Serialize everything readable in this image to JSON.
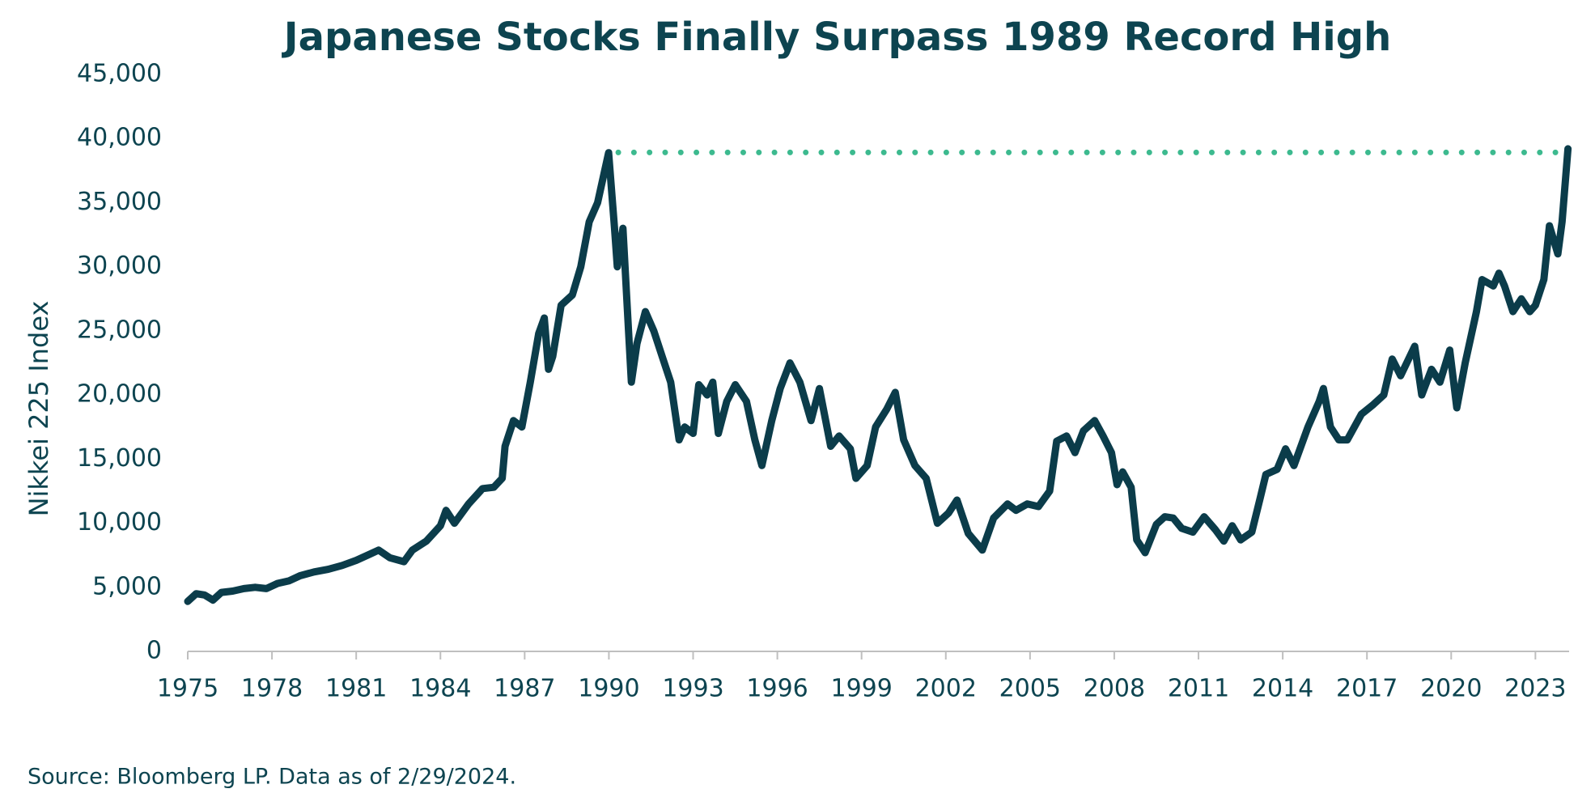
{
  "chart_data": {
    "type": "line",
    "title": "Japanese Stocks Finally Surpass 1989 Record High",
    "y_label": "Nikkei 225 Index",
    "source": "Source: Bloomberg LP. Data as of 2/29/2024.",
    "xlim": [
      1975,
      2024.2
    ],
    "xticks": [
      1975,
      1978,
      1981,
      1984,
      1987,
      1990,
      1993,
      1996,
      1999,
      2002,
      2005,
      2008,
      2011,
      2014,
      2017,
      2020,
      2023
    ],
    "ylim": [
      0,
      45000
    ],
    "yticks": [
      0,
      {
        "value": 5000,
        "label": "5,000"
      },
      {
        "value": 10000,
        "label": "10,000"
      },
      {
        "value": 15000,
        "label": "15,000"
      },
      {
        "value": 20000,
        "label": "20,000"
      },
      {
        "value": 25000,
        "label": "25,000"
      },
      {
        "value": 30000,
        "label": "30,000"
      },
      {
        "value": 35000,
        "label": "35,000"
      },
      {
        "value": 40000,
        "label": "40,000"
      },
      {
        "value": 45000,
        "label": "45,000"
      }
    ],
    "grid": false,
    "x": [
      1975.0,
      1975.3,
      1975.6,
      1975.9,
      1976.2,
      1976.6,
      1977.0,
      1977.4,
      1977.8,
      1978.2,
      1978.6,
      1979.0,
      1979.5,
      1980.0,
      1980.5,
      1981.0,
      1981.5,
      1981.8,
      1982.2,
      1982.7,
      1983.0,
      1983.5,
      1984.0,
      1984.2,
      1984.5,
      1985.0,
      1985.5,
      1985.9,
      1986.2,
      1986.3,
      1986.6,
      1986.9,
      1987.2,
      1987.5,
      1987.7,
      1987.85,
      1988.0,
      1988.3,
      1988.7,
      1989.0,
      1989.3,
      1989.6,
      1989.99,
      1990.2,
      1990.3,
      1990.5,
      1990.7,
      1990.8,
      1991.0,
      1991.3,
      1991.6,
      1991.9,
      1992.2,
      1992.5,
      1992.7,
      1993.0,
      1993.2,
      1993.5,
      1993.7,
      1993.9,
      1994.2,
      1994.5,
      1994.9,
      1995.2,
      1995.45,
      1995.8,
      1996.1,
      1996.45,
      1996.8,
      1997.2,
      1997.5,
      1997.9,
      1998.2,
      1998.6,
      1998.8,
      1999.2,
      1999.5,
      1999.9,
      2000.2,
      2000.5,
      2000.9,
      2001.3,
      2001.7,
      2002.1,
      2002.4,
      2002.8,
      2003.3,
      2003.7,
      2004.2,
      2004.5,
      2004.9,
      2005.3,
      2005.7,
      2005.95,
      2006.3,
      2006.6,
      2006.9,
      2007.3,
      2007.6,
      2007.9,
      2008.1,
      2008.3,
      2008.6,
      2008.8,
      2009.1,
      2009.5,
      2009.8,
      2010.1,
      2010.4,
      2010.8,
      2011.2,
      2011.6,
      2011.9,
      2012.2,
      2012.5,
      2012.9,
      2013.2,
      2013.4,
      2013.8,
      2014.1,
      2014.4,
      2014.9,
      2015.3,
      2015.45,
      2015.7,
      2016.0,
      2016.3,
      2016.8,
      2017.2,
      2017.6,
      2017.9,
      2018.2,
      2018.7,
      2018.95,
      2019.3,
      2019.6,
      2019.95,
      2020.2,
      2020.5,
      2020.9,
      2021.1,
      2021.5,
      2021.7,
      2021.9,
      2022.2,
      2022.5,
      2022.8,
      2023.0,
      2023.3,
      2023.5,
      2023.8,
      2023.95,
      2024.16
    ],
    "series": [
      {
        "color": "#0b3c4a",
        "values": [
          3900,
          4500,
          4400,
          4000,
          4600,
          4700,
          4900,
          5000,
          4900,
          5300,
          5500,
          5900,
          6200,
          6400,
          6700,
          7100,
          7600,
          7900,
          7300,
          7000,
          7900,
          8600,
          9800,
          11000,
          10000,
          11500,
          12700,
          12800,
          13500,
          16000,
          18000,
          17500,
          21000,
          24800,
          26000,
          22000,
          23000,
          27000,
          27800,
          30000,
          33500,
          35000,
          38900,
          33000,
          30000,
          33000,
          25000,
          21000,
          24000,
          26500,
          25000,
          23000,
          21000,
          16500,
          17500,
          17000,
          20800,
          20000,
          21000,
          17000,
          19500,
          20800,
          19500,
          16500,
          14500,
          18000,
          20500,
          22500,
          21000,
          18000,
          20500,
          16000,
          16800,
          15800,
          13500,
          14500,
          17500,
          18900,
          20200,
          16500,
          14500,
          13500,
          10000,
          10800,
          11800,
          9200,
          7900,
          10400,
          11500,
          11000,
          11500,
          11300,
          12500,
          16400,
          16800,
          15500,
          17200,
          18000,
          16800,
          15500,
          13000,
          14000,
          12800,
          8700,
          7700,
          9900,
          10500,
          10400,
          9600,
          9300,
          10500,
          9500,
          8600,
          9800,
          8700,
          9300,
          12000,
          13800,
          14200,
          15800,
          14500,
          17500,
          19500,
          20500,
          17500,
          16500,
          16500,
          18500,
          19200,
          20000,
          22800,
          21500,
          23800,
          20000,
          22000,
          21000,
          23500,
          19000,
          22500,
          26500,
          29000,
          28500,
          29500,
          28500,
          26500,
          27500,
          26500,
          27000,
          29000,
          33200,
          31000,
          33500,
          39200
        ]
      }
    ],
    "reference_line": {
      "y": 38916,
      "x_start": 1989.99,
      "x_end": 2024.16,
      "color": "#3dba8f"
    }
  }
}
